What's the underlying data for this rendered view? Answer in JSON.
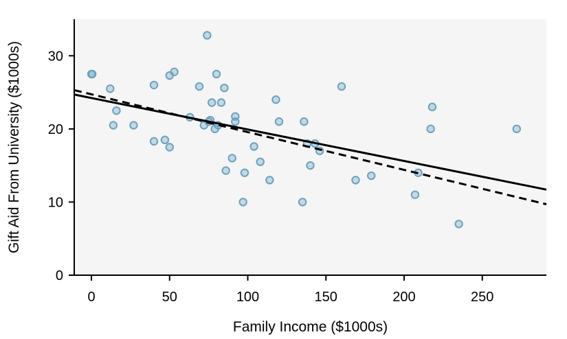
{
  "chart_data": {
    "type": "scatter",
    "xlabel": "Family Income ($1000s)",
    "ylabel": "Gift Aid From University ($1000s)",
    "xlim": [
      -11,
      291
    ],
    "ylim": [
      0,
      35
    ],
    "x_ticks": [
      0,
      50,
      100,
      150,
      200,
      250
    ],
    "y_ticks": [
      0,
      10,
      20,
      30
    ],
    "grid": false,
    "background": "#f5f5f5",
    "point_color": "#6aa2c0",
    "points": [
      {
        "x": 0,
        "y": 27.5
      },
      {
        "x": 0.5,
        "y": 27.5
      },
      {
        "x": 12,
        "y": 25.5
      },
      {
        "x": 14,
        "y": 20.5
      },
      {
        "x": 16,
        "y": 22.5
      },
      {
        "x": 27,
        "y": 20.5
      },
      {
        "x": 40,
        "y": 18.3
      },
      {
        "x": 40,
        "y": 26.0
      },
      {
        "x": 47,
        "y": 18.5
      },
      {
        "x": 50,
        "y": 17.5
      },
      {
        "x": 50,
        "y": 27.3
      },
      {
        "x": 53,
        "y": 27.8
      },
      {
        "x": 63,
        "y": 21.6
      },
      {
        "x": 69,
        "y": 25.8
      },
      {
        "x": 72,
        "y": 20.5
      },
      {
        "x": 74,
        "y": 32.8
      },
      {
        "x": 75,
        "y": 21.0
      },
      {
        "x": 76,
        "y": 21.2
      },
      {
        "x": 77,
        "y": 23.6
      },
      {
        "x": 79,
        "y": 20.0
      },
      {
        "x": 80,
        "y": 27.5
      },
      {
        "x": 81,
        "y": 20.5
      },
      {
        "x": 83,
        "y": 23.6
      },
      {
        "x": 85,
        "y": 25.6
      },
      {
        "x": 86,
        "y": 14.3
      },
      {
        "x": 90,
        "y": 16.0
      },
      {
        "x": 92,
        "y": 21.7
      },
      {
        "x": 92,
        "y": 21.0
      },
      {
        "x": 97,
        "y": 10.0
      },
      {
        "x": 98,
        "y": 14.0
      },
      {
        "x": 104,
        "y": 17.6
      },
      {
        "x": 108,
        "y": 15.5
      },
      {
        "x": 114,
        "y": 13.0
      },
      {
        "x": 118,
        "y": 24.0
      },
      {
        "x": 120,
        "y": 21.0
      },
      {
        "x": 135,
        "y": 10.0
      },
      {
        "x": 136,
        "y": 21.0
      },
      {
        "x": 138,
        "y": 18.0
      },
      {
        "x": 140,
        "y": 15.0
      },
      {
        "x": 143,
        "y": 18.0
      },
      {
        "x": 146,
        "y": 17.0
      },
      {
        "x": 160,
        "y": 25.8
      },
      {
        "x": 169,
        "y": 13.0
      },
      {
        "x": 179,
        "y": 13.6
      },
      {
        "x": 207,
        "y": 11.0
      },
      {
        "x": 209,
        "y": 14.0
      },
      {
        "x": 217,
        "y": 20.0
      },
      {
        "x": 218,
        "y": 23.0
      },
      {
        "x": 235,
        "y": 7.0
      },
      {
        "x": 272,
        "y": 20.0
      }
    ],
    "lines": [
      {
        "style": "solid",
        "color": "#000000",
        "x": [
          -11,
          291
        ],
        "y": [
          24.7,
          11.7
        ]
      },
      {
        "style": "dashed",
        "color": "#000000",
        "x": [
          -11,
          291
        ],
        "y": [
          25.3,
          9.7
        ]
      }
    ]
  }
}
